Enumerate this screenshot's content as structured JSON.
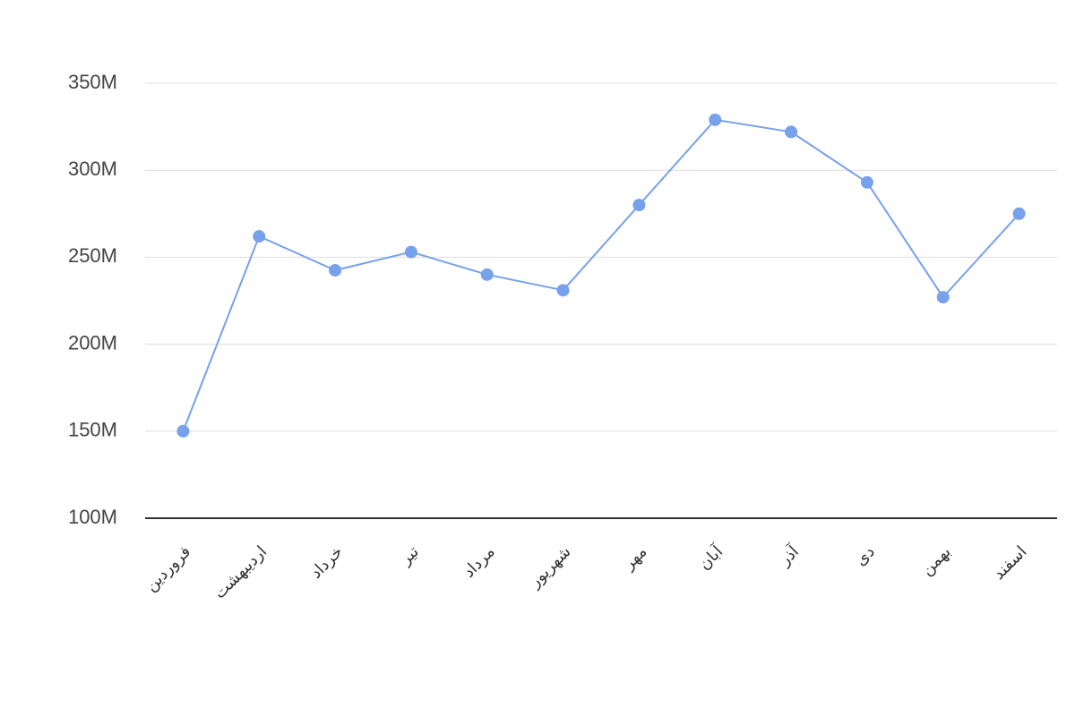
{
  "chart_data": {
    "type": "line",
    "categories": [
      "فروردین",
      "اردیبهشت",
      "خرداد",
      "تیر",
      "مرداد",
      "شهریور",
      "مهر",
      "آبان",
      "آذر",
      "دی",
      "بهمن",
      "اسفند"
    ],
    "values": [
      150000000,
      262000000,
      242500000,
      253000000,
      240000000,
      231000000,
      280000000,
      329000000,
      322000000,
      293000000,
      227000000,
      275000000
    ],
    "color": "#77a1eb",
    "ylim": [
      100000000,
      350000000
    ],
    "yticks": [
      {
        "value": 100000000,
        "label": "100M"
      },
      {
        "value": 150000000,
        "label": "150M"
      },
      {
        "value": 200000000,
        "label": "200M"
      },
      {
        "value": 250000000,
        "label": "250M"
      },
      {
        "value": 300000000,
        "label": "300M"
      },
      {
        "value": 350000000,
        "label": "350M"
      }
    ],
    "grid": true
  }
}
